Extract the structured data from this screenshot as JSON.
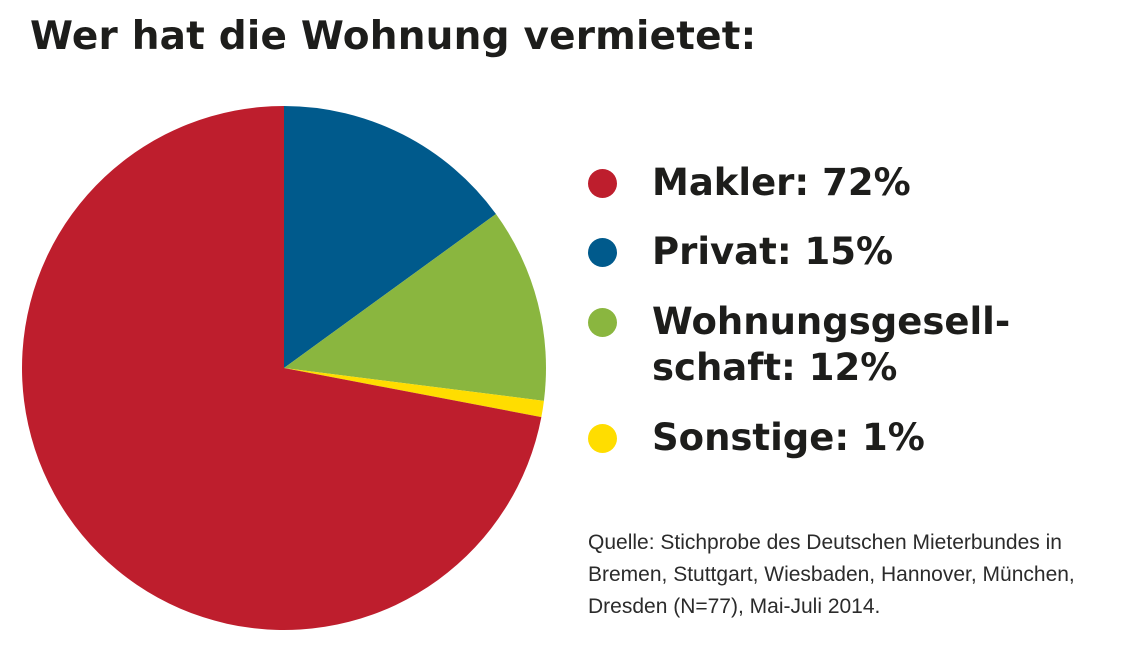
{
  "title": "Wer hat die Wohnung vermietet:",
  "chart_data": {
    "type": "pie",
    "title": "Wer hat die Wohnung vermietet:",
    "unit": "%",
    "slices": [
      {
        "name": "Makler",
        "value": 72,
        "color": "#be1e2d"
      },
      {
        "name": "Privat",
        "value": 15,
        "color": "#005a8c"
      },
      {
        "name": "Wohnungsgesellschaft",
        "value": 12,
        "color": "#8ab63f"
      },
      {
        "name": "Sonstige",
        "value": 1,
        "color": "#ffdd00"
      }
    ],
    "legend_position": "right"
  },
  "legend": {
    "items": [
      {
        "lines": [
          "Makler: 72%"
        ],
        "color": "#be1e2d"
      },
      {
        "lines": [
          "Privat: 15%"
        ],
        "color": "#005a8c"
      },
      {
        "lines": [
          "Wohnungsgesell-",
          "schaft: 12%"
        ],
        "color": "#8ab63f"
      },
      {
        "lines": [
          "Sonstige: 1%"
        ],
        "color": "#ffdd00"
      }
    ]
  },
  "source": {
    "lines": [
      "Quelle: Stichprobe des Deutschen Mieterbundes in",
      "Bremen, Stuttgart, Wiesbaden, Hannover, München,",
      "Dresden  (N=77), Mai-Juli 2014."
    ]
  }
}
